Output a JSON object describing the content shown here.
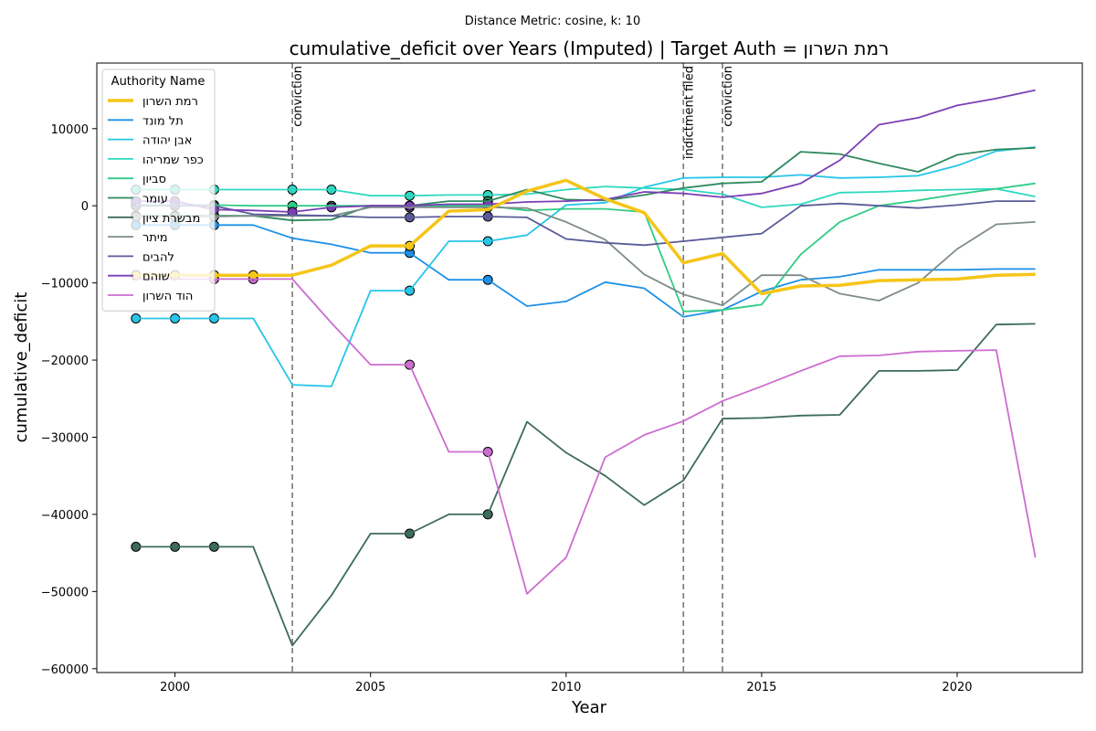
{
  "chart_data": {
    "type": "line",
    "suptitle": "Distance Metric: cosine, k: 10",
    "title": "cumulative_deficit over Years (Imputed) | Target Auth = רמת השרון",
    "xlabel": "Year",
    "ylabel": "cumulative_deficit",
    "xlim": [
      1998,
      2023.2
    ],
    "ylim": [
      -60500,
      18500
    ],
    "xticks": [
      2000,
      2005,
      2010,
      2015,
      2020
    ],
    "yticks": [
      -60000,
      -50000,
      -40000,
      -30000,
      -20000,
      -10000,
      0,
      10000
    ],
    "xtick_labels": [
      "2000",
      "2005",
      "2010",
      "2015",
      "2020"
    ],
    "ytick_labels": [
      "−60000",
      "−50000",
      "−40000",
      "−30000",
      "−20000",
      "−10000",
      "0",
      "10000"
    ],
    "grid": false,
    "legend_title": "Authority Name",
    "legend_position": "upper left",
    "events": [
      {
        "year": 2003,
        "label": "conviction"
      },
      {
        "year": 2013,
        "label": "indictment filed"
      },
      {
        "year": 2014,
        "label": "conviction"
      }
    ],
    "x": [
      1999,
      2000,
      2001,
      2002,
      2003,
      2004,
      2005,
      2006,
      2007,
      2008,
      2009,
      2010,
      2011,
      2012,
      2013,
      2014,
      2015,
      2016,
      2017,
      2018,
      2019,
      2020,
      2021,
      2022
    ],
    "series": [
      {
        "name": "רמת השרון",
        "color": "#f5c518",
        "target": true,
        "values": [
          -9000,
          -9000,
          -9000,
          -9000,
          -9000,
          -7700,
          -5200,
          -5200,
          -700,
          -500,
          1900,
          3300,
          900,
          -900,
          -7400,
          -6200,
          -11400,
          -10400,
          -10300,
          -9700,
          -9600,
          -9500,
          -9000,
          -8900
        ],
        "imputed_years": [
          1999,
          2000,
          2001,
          2002,
          2006
        ]
      },
      {
        "name": "תל מונד",
        "color": "#1e90e6",
        "values": [
          -2500,
          -2500,
          -2500,
          -2500,
          -4200,
          -5000,
          -6100,
          -6100,
          -9600,
          -9600,
          -13000,
          -12400,
          -9900,
          -10700,
          -14400,
          -13500,
          -11100,
          -9600,
          -9200,
          -8300,
          -8300,
          -8300,
          -8200,
          -8200
        ],
        "imputed_years": [
          1999,
          2000,
          2001,
          2006,
          2008
        ]
      },
      {
        "name": "אבן יהודה",
        "color": "#26c6e8",
        "values": [
          -14600,
          -14600,
          -14600,
          -14600,
          -23200,
          -23400,
          -11000,
          -11000,
          -4600,
          -4600,
          -3800,
          100,
          400,
          2400,
          3600,
          3700,
          3700,
          4000,
          3600,
          3700,
          3900,
          5200,
          7100,
          7600
        ],
        "imputed_years": [
          1999,
          2000,
          2001,
          2006,
          2008
        ]
      },
      {
        "name": "כפר שמריהו",
        "color": "#2ed8c0",
        "values": [
          2100,
          2100,
          2100,
          2100,
          2100,
          2100,
          1300,
          1300,
          1400,
          1400,
          1500,
          2100,
          2500,
          2300,
          2100,
          1500,
          -200,
          200,
          1700,
          1800,
          2000,
          2100,
          2200,
          1200
        ],
        "imputed_years": [
          1999,
          2000,
          2001,
          2003,
          2004,
          2006,
          2008
        ]
      },
      {
        "name": "סביון",
        "color": "#2ecc85",
        "values": [
          100,
          100,
          100,
          0,
          0,
          0,
          0,
          0,
          0,
          0,
          -600,
          -400,
          -400,
          -800,
          -13700,
          -13500,
          -12800,
          -6300,
          -2100,
          0,
          700,
          1500,
          2200,
          2900
        ],
        "imputed_years": [
          1999,
          2000,
          2001,
          2003,
          2004,
          2006,
          2008
        ]
      },
      {
        "name": "עומר",
        "color": "#2f8a5e",
        "values": [
          -1300,
          -1300,
          -1300,
          -1300,
          -1900,
          -1800,
          0,
          0,
          600,
          600,
          2100,
          800,
          700,
          1400,
          2300,
          2900,
          3100,
          7000,
          6700,
          5500,
          4400,
          6600,
          7300,
          7500
        ],
        "imputed_years": [
          1999,
          2000,
          2001,
          2006,
          2008
        ]
      },
      {
        "name": "מבשרת ציון",
        "color": "#3d6b5d",
        "values": [
          -44200,
          -44200,
          -44200,
          -44200,
          -57000,
          -50500,
          -42500,
          -42500,
          -40000,
          -40000,
          -28000,
          -32000,
          -35000,
          -38800,
          -35600,
          -27600,
          -27500,
          -27200,
          -27100,
          -21400,
          -21400,
          -21300,
          -15400,
          -15300
        ],
        "imputed_years": [
          1999,
          2000,
          2001,
          2006,
          2008
        ]
      },
      {
        "name": "מיתר",
        "color": "#7f8c8a",
        "values": [
          -1400,
          -1400,
          -1400,
          -1300,
          -1300,
          -1300,
          -200,
          -200,
          -200,
          -200,
          -300,
          -2100,
          -4400,
          -8900,
          -11500,
          -12900,
          -9000,
          -9000,
          -11400,
          -12300,
          -10000,
          -5600,
          -2400,
          -2100
        ],
        "imputed_years": [
          1999,
          2000,
          2001,
          2006,
          2008
        ]
      },
      {
        "name": "להבים",
        "color": "#5b5b9a",
        "values": [
          0,
          0,
          0,
          -1100,
          -1200,
          -1300,
          -1500,
          -1500,
          -1400,
          -1400,
          -1500,
          -4300,
          -4800,
          -5100,
          -4600,
          -4100,
          -3600,
          0,
          300,
          0,
          -300,
          100,
          600,
          600
        ],
        "imputed_years": [
          1999,
          2000,
          2001,
          2006,
          2008
        ]
      },
      {
        "name": "שוהם",
        "color": "#7b3fb5",
        "values": [
          600,
          600,
          -500,
          -600,
          -800,
          -200,
          0,
          0,
          200,
          200,
          500,
          600,
          800,
          1800,
          1600,
          1100,
          1600,
          2900,
          5900,
          10500,
          11400,
          13000,
          13900,
          15000
        ],
        "imputed_years": [
          1999,
          2000,
          2001,
          2003,
          2004,
          2006,
          2008
        ]
      },
      {
        "name": "הוד השרון",
        "color": "#cc6dd0",
        "values": [
          -9500,
          -9500,
          -9500,
          -9500,
          -9500,
          -15200,
          -20600,
          -20600,
          -31900,
          -31900,
          -50300,
          -45600,
          -32600,
          -29700,
          -27900,
          -25300,
          -23400,
          -21400,
          -19500,
          -19400,
          -18900,
          -18800,
          -18700,
          -45600
        ],
        "imputed_years": [
          2001,
          2002,
          2006,
          2008
        ]
      }
    ]
  }
}
